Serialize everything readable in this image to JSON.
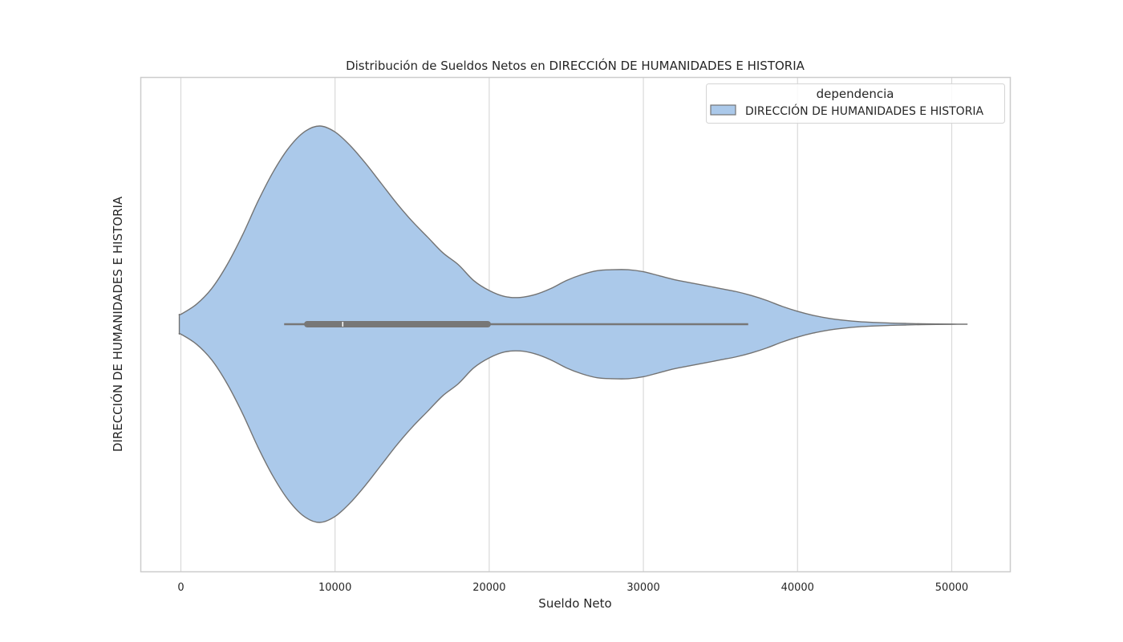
{
  "chart_data": {
    "type": "violin",
    "title": "Distribución de Sueldos Netos en DIRECCIÓN DE HUMANIDADES E HISTORIA",
    "xlabel": "Sueldo Neto",
    "ylabel": "DIRECCIÓN DE HUMANIDADES E HISTORIA",
    "xlim": [
      -2600,
      53800
    ],
    "xticks": [
      0,
      10000,
      20000,
      30000,
      40000,
      50000
    ],
    "xtick_labels": [
      "0",
      "10000",
      "20000",
      "30000",
      "40000",
      "50000"
    ],
    "grid": "vertical",
    "legend": {
      "title": "dependencia",
      "position": "top-right",
      "entries": [
        "DIRECCIÓN DE HUMANIDADES E HISTORIA"
      ]
    },
    "series": [
      {
        "name": "DIRECCIÓN DE HUMANIDADES E HISTORIA",
        "density_x": [
          -100,
          0,
          1000,
          2000,
          3000,
          4000,
          5000,
          6000,
          7000,
          8000,
          9000,
          10000,
          11000,
          12000,
          13000,
          14000,
          15000,
          16000,
          17000,
          18000,
          19000,
          20000,
          21000,
          22000,
          23000,
          24000,
          25000,
          26000,
          27000,
          28000,
          29000,
          30000,
          31000,
          32000,
          33000,
          34000,
          35000,
          36000,
          37000,
          38000,
          39000,
          40000,
          41000,
          42000,
          43000,
          44000,
          45000,
          46000,
          47000,
          48000,
          49000,
          50000,
          51000
        ],
        "density_relative": [
          0.05,
          0.05,
          0.1,
          0.18,
          0.3,
          0.45,
          0.62,
          0.77,
          0.89,
          0.97,
          1.0,
          0.97,
          0.9,
          0.81,
          0.71,
          0.61,
          0.52,
          0.44,
          0.36,
          0.3,
          0.22,
          0.17,
          0.14,
          0.135,
          0.15,
          0.18,
          0.22,
          0.25,
          0.27,
          0.275,
          0.275,
          0.265,
          0.245,
          0.225,
          0.21,
          0.195,
          0.18,
          0.165,
          0.145,
          0.12,
          0.09,
          0.065,
          0.045,
          0.03,
          0.02,
          0.013,
          0.009,
          0.006,
          0.004,
          0.002,
          0.001,
          0.0005,
          0.0
        ],
        "box": {
          "whisker_low": 6700,
          "q1": 8200,
          "median": 10500,
          "q3": 19900,
          "whisker_high": 36800
        },
        "color": "#abc9ea",
        "edge_color": "#737373"
      }
    ]
  }
}
